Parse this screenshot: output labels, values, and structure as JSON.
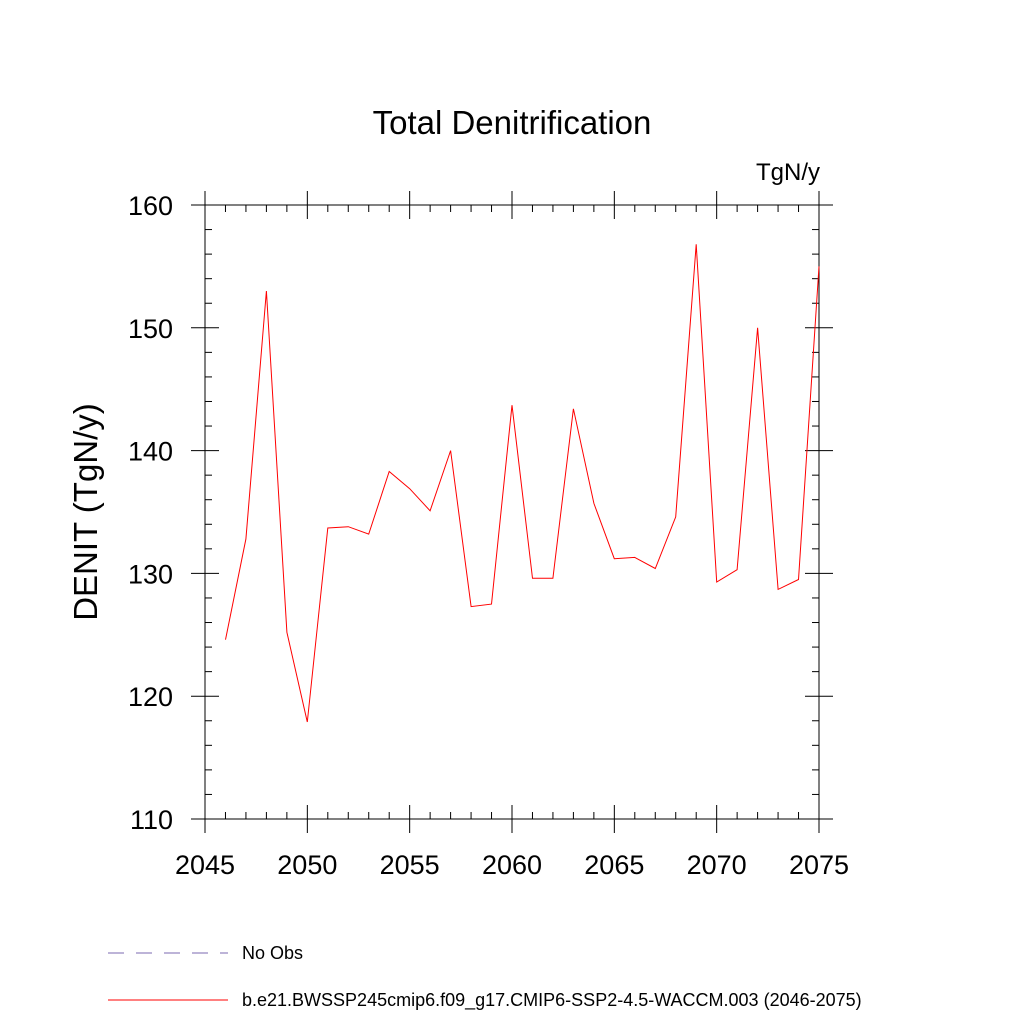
{
  "chart_data": {
    "type": "line",
    "title": "Total Denitrification",
    "units_label": "TgN/y",
    "ylabel": "DENIT  (TgN/y)",
    "xlabel": "",
    "xlim": [
      2045,
      2075
    ],
    "ylim": [
      110,
      160
    ],
    "x_ticks": [
      2045,
      2050,
      2055,
      2060,
      2065,
      2070,
      2075
    ],
    "y_ticks": [
      110,
      120,
      130,
      140,
      150,
      160
    ],
    "grid": false,
    "legend_position": "bottom",
    "series": [
      {
        "name": "b.e21.BWSSP245cmip6.f09_g17.CMIP6-SSP2-4.5-WACCM.003 (2046-2075)",
        "color": "#ff0000",
        "x": [
          2046,
          2047,
          2048,
          2049,
          2050,
          2051,
          2052,
          2053,
          2054,
          2055,
          2056,
          2057,
          2058,
          2059,
          2060,
          2061,
          2062,
          2063,
          2064,
          2065,
          2066,
          2067,
          2068,
          2069,
          2070,
          2071,
          2072,
          2073,
          2074,
          2075
        ],
        "y": [
          124.6,
          132.8,
          153.0,
          125.2,
          117.9,
          133.7,
          133.8,
          133.2,
          138.3,
          136.9,
          135.1,
          140.0,
          127.3,
          127.5,
          143.7,
          129.6,
          129.6,
          143.4,
          135.7,
          131.2,
          131.3,
          130.4,
          134.6,
          156.8,
          129.3,
          130.3,
          150.0,
          128.7,
          129.5,
          155.0
        ]
      }
    ],
    "legend": [
      {
        "label": "No Obs",
        "color": "#7b68b0",
        "style": "dashed"
      },
      {
        "label": "b.e21.BWSSP245cmip6.f09_g17.CMIP6-SSP2-4.5-WACCM.003 (2046-2075)",
        "color": "#ff0000",
        "style": "solid"
      }
    ]
  }
}
